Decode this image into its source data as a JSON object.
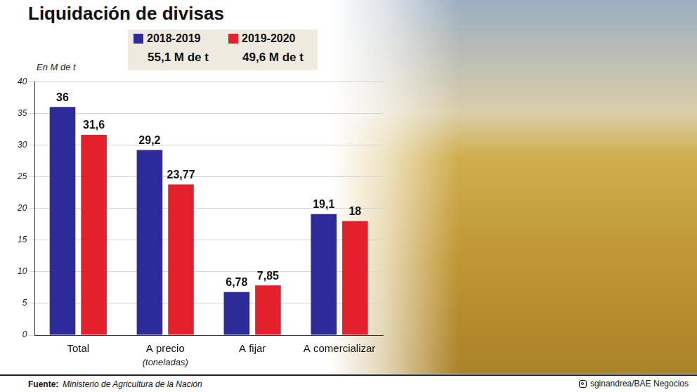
{
  "chart_data": {
    "type": "bar",
    "title": "Liquidación de divisas",
    "y_label": "En M de t",
    "categories": [
      "Total",
      "A precio",
      "A fijar",
      "A comercializar"
    ],
    "series": [
      {
        "name": "2018-2019",
        "color": "#2d2b9a",
        "values": [
          36,
          29.2,
          6.78,
          19.1
        ],
        "value_labels": [
          "36",
          "29,2",
          "6,78",
          "19,1"
        ],
        "total": 55.1,
        "total_label": "55,1 M de t"
      },
      {
        "name": "2019-2020",
        "color": "#e3202b",
        "values": [
          31.6,
          23.77,
          7.85,
          18
        ],
        "value_labels": [
          "31,6",
          "23,77",
          "7,85",
          "18"
        ],
        "total": 49.6,
        "total_label": "49,6 M de t"
      }
    ],
    "annotations": [
      {
        "text": "(toneladas)",
        "category": "A precio"
      }
    ],
    "ylim": [
      0,
      40
    ],
    "yticks": [
      0,
      5,
      10,
      15,
      20,
      25,
      30,
      35,
      40
    ],
    "grid": true,
    "legend": "top",
    "data_labels": true,
    "source_label": "Fuente:",
    "source": "Ministerio de Agricultura de la Nación",
    "credit": "sginandrea/BAE Negocios"
  }
}
